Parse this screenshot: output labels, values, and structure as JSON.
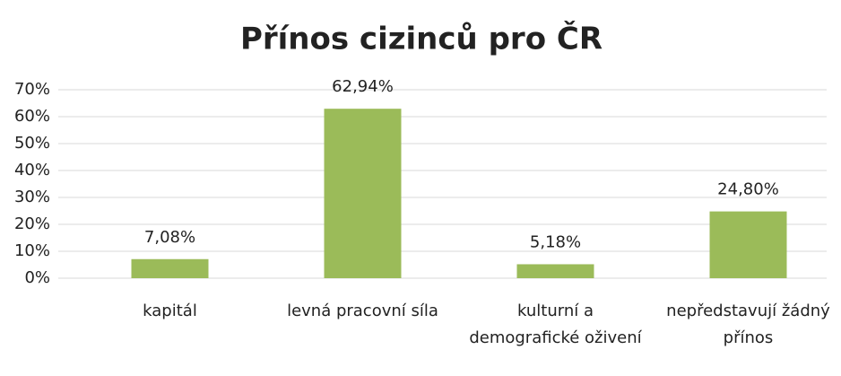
{
  "chart_data": {
    "type": "bar",
    "title": "Přínos cizinců pro ČR",
    "categories": [
      "kapitál",
      "levná pracovní síla",
      "kulturní a demografické oživení",
      "nepředstavují žádný přínos"
    ],
    "values": [
      7.08,
      62.94,
      5.18,
      24.8
    ],
    "value_labels": [
      "7,08%",
      "62,94%",
      "5,18%",
      "24,80%"
    ],
    "color": "#9bbb59",
    "ylim": [
      0,
      70
    ],
    "yticks": [
      {
        "value": 0,
        "label": "0%"
      },
      {
        "value": 10,
        "label": "10%"
      },
      {
        "value": 20,
        "label": "20%"
      },
      {
        "value": 30,
        "label": "30%"
      },
      {
        "value": 40,
        "label": "40%"
      },
      {
        "value": 50,
        "label": "50%"
      },
      {
        "value": 60,
        "label": "60%"
      },
      {
        "value": 70,
        "label": "70%"
      }
    ],
    "grid": true
  }
}
